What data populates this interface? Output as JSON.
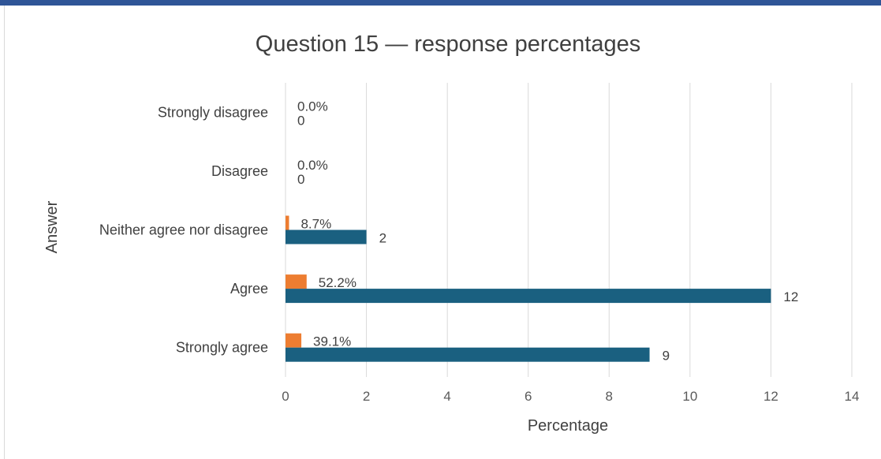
{
  "chart_data": {
    "type": "bar",
    "orientation": "horizontal",
    "title": "Question 15 — response percentages",
    "xlabel": "Percentage",
    "ylabel": "Answer",
    "xlim": [
      0,
      14
    ],
    "x_ticks": [
      "0",
      "2",
      "4",
      "6",
      "8",
      "10",
      "12",
      "14"
    ],
    "categories": [
      "Strongly disagree",
      "Disagree",
      "Neither agree nor disagree",
      "Agree",
      "Strongly agree"
    ],
    "series": [
      {
        "color": "#ed7d31",
        "values": [
          0,
          0,
          0.087,
          0.522,
          0.391
        ],
        "labels": [
          "0.0%",
          "0.0%",
          "8.7%",
          "52.2%",
          "39.1%"
        ]
      },
      {
        "color": "#1a6080",
        "values": [
          0,
          0,
          2,
          12,
          9
        ],
        "labels": [
          "0",
          "0",
          "2",
          "12",
          "9"
        ]
      }
    ],
    "grid": true,
    "legend": "none"
  }
}
